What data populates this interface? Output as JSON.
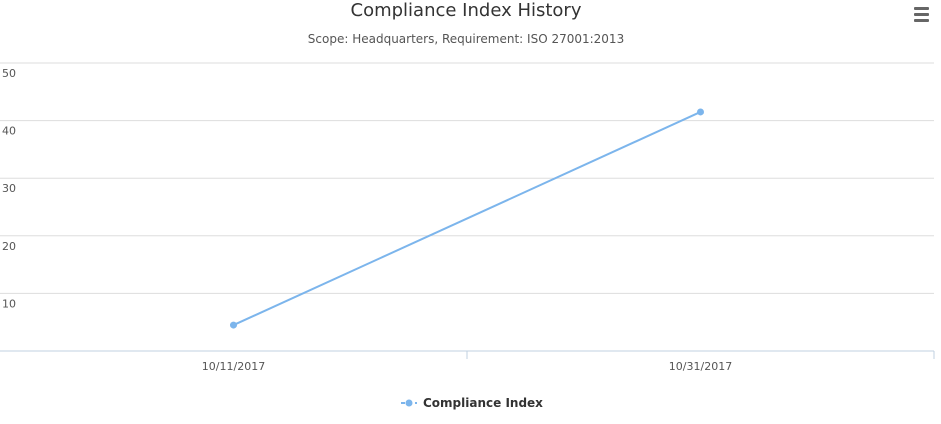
{
  "chart_data": {
    "type": "line",
    "title": "Compliance Index History",
    "subtitle": "Scope: Headquarters, Requirement: ISO 27001:2013",
    "xlabel": "",
    "ylabel": "",
    "categories": [
      "10/11/2017",
      "10/31/2017"
    ],
    "series": [
      {
        "name": "Compliance Index",
        "values": [
          4.5,
          41.5
        ],
        "color": "#7cb5ec"
      }
    ],
    "ylim": [
      0,
      50
    ],
    "yticks": [
      10,
      20,
      30,
      40,
      50
    ],
    "grid": true,
    "legend": "bottom-center"
  },
  "menu": {
    "icon": "hamburger-menu-icon"
  }
}
